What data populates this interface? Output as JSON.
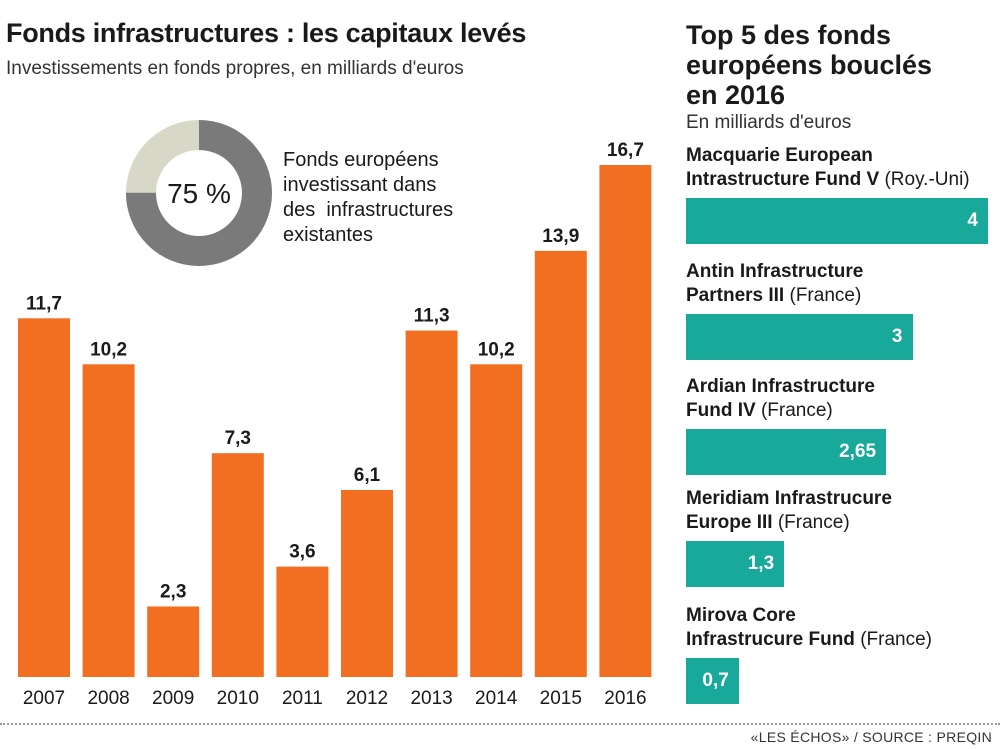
{
  "left_panel": {
    "title": "Fonds infrastructures : les capitaux levés",
    "subtitle": "Investissements en fonds propres, en milliards d'euros"
  },
  "donut": {
    "percent_label": "75 %",
    "value": 75,
    "label_lines": [
      "Fonds européens",
      "investissant dans",
      "des  infrastructures",
      "existantes"
    ]
  },
  "right_panel": {
    "title_lines": [
      "Top 5 des fonds",
      "européens bouclés",
      "en 2016"
    ],
    "subtitle": "En milliards d'euros",
    "funds": [
      {
        "name_lines": [
          "Macquarie European",
          "Intrastructure Fund V"
        ],
        "country": "(Roy.-Uni)",
        "value_label": "4",
        "value": 4
      },
      {
        "name_lines": [
          "Antin Infrastructure",
          "Partners III"
        ],
        "country": "(France)",
        "value_label": "3",
        "value": 3
      },
      {
        "name_lines": [
          "Ardian Infrastructure",
          "Fund IV"
        ],
        "country": "(France)",
        "value_label": "2,65",
        "value": 2.65
      },
      {
        "name_lines": [
          "Meridiam Infrastrucure",
          "Europe III"
        ],
        "country": "(France)",
        "value_label": "1,3",
        "value": 1.3
      },
      {
        "name_lines": [
          "Mirova Core",
          "Infrastrucure Fund"
        ],
        "country": "(France)",
        "value_label": "0,7",
        "value": 0.7
      }
    ]
  },
  "footer": {
    "source": "«LES ÉCHOS» / SOURCE : PREQIN"
  },
  "colors": {
    "bar": "#f26f21",
    "donut_main": "#7a7a7a",
    "donut_rest": "#d8d8c8",
    "fund_bar": "#18a99b"
  },
  "chart_data": [
    {
      "type": "bar",
      "title": "Fonds infrastructures : les capitaux levés",
      "subtitle": "Investissements en fonds propres, en milliards d'euros",
      "categories": [
        "2007",
        "2008",
        "2009",
        "2010",
        "2011",
        "2012",
        "2013",
        "2014",
        "2015",
        "2016"
      ],
      "values": [
        11.7,
        10.2,
        2.3,
        7.3,
        3.6,
        6.1,
        11.3,
        10.2,
        13.9,
        16.7
      ],
      "value_labels": [
        "11,7",
        "10,2",
        "2,3",
        "7,3",
        "3,6",
        "6,1",
        "11,3",
        "10,2",
        "13,9",
        "16,7"
      ],
      "ylim": [
        0,
        16.7
      ],
      "grid": false
    },
    {
      "type": "pie",
      "categories": [
        "Fonds européens investissant dans des infrastructures existantes",
        ""
      ],
      "values": [
        75,
        25
      ]
    },
    {
      "type": "bar",
      "orientation": "horizontal",
      "title": "Top 5 des fonds européens bouclés en 2016",
      "subtitle": "En milliards d'euros",
      "categories": [
        "Macquarie European Intrastructure Fund V",
        "Antin Infrastructure Partners III",
        "Ardian Infrastructure Fund IV",
        "Meridiam Infrastrucure Europe III",
        "Mirova Core Infrastrucure Fund"
      ],
      "values": [
        4,
        3,
        2.65,
        1.3,
        0.7
      ],
      "xlim": [
        0,
        4
      ]
    }
  ]
}
